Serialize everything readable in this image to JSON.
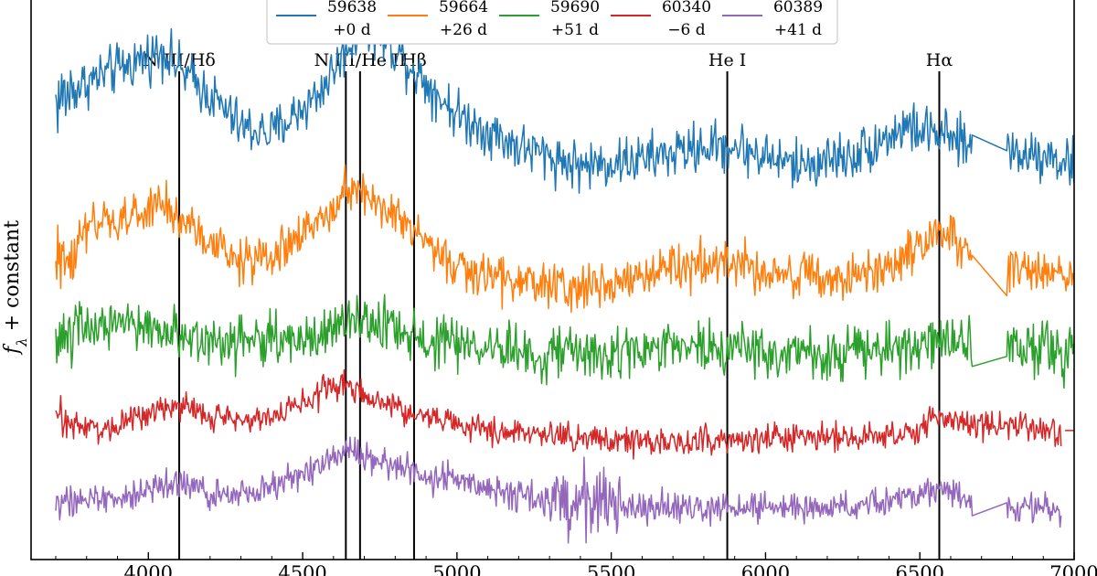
{
  "chart_data": {
    "type": "line",
    "ylabel": "f_λ + constant",
    "ylabel_parts": [
      "f",
      "λ",
      " + constant"
    ],
    "xlim": [
      3620,
      7000
    ],
    "ylim": [
      -0.3,
      8.4
    ],
    "xticks": [
      4000,
      4500,
      5000,
      5500,
      6000,
      6500,
      7000
    ],
    "x_tick_labels": [
      "4000",
      "4500",
      "5000",
      "5500",
      "6000",
      "6500",
      "7000"
    ],
    "legend": {
      "placement": "upper-center",
      "entries": [
        {
          "label_line1": "59638",
          "label_line2": "+0 d",
          "color": "#1f77b4"
        },
        {
          "label_line1": "59664",
          "label_line2": "+26 d",
          "color": "#ff7f0e"
        },
        {
          "label_line1": "59690",
          "label_line2": "+51 d",
          "color": "#2ca02c"
        },
        {
          "label_line1": "60340",
          "label_line2": "−6 d",
          "color": "#d62728"
        },
        {
          "label_line1": "60389",
          "label_line2": "+41 d",
          "color": "#9467bd"
        }
      ]
    },
    "line_markers": [
      {
        "label": "N III/Hδ",
        "wavelength": 4100
      },
      {
        "label": "",
        "wavelength": 4640
      },
      {
        "label": "N III/He II",
        "wavelength": 4686
      },
      {
        "label": "Hβ",
        "wavelength": 4861
      },
      {
        "label": "He I",
        "wavelength": 5876
      },
      {
        "label": "Hα",
        "wavelength": 6563
      }
    ],
    "series": [
      {
        "name": "59638 +0 d",
        "color": "#1f77b4",
        "offset": 5.5,
        "noise": 0.32,
        "x_start": 3700,
        "x": [
          3700,
          3800,
          3950,
          4050,
          4100,
          4200,
          4300,
          4400,
          4550,
          4640,
          4700,
          4800,
          4900,
          5000,
          5200,
          5400,
          5600,
          5800,
          5900,
          6100,
          6300,
          6450,
          6550,
          6660,
          6780,
          6800,
          6900,
          7000
        ],
        "y": [
          1.3,
          1.6,
          1.9,
          2.1,
          1.8,
          1.4,
          0.9,
          0.8,
          1.4,
          2.1,
          2.5,
          2.1,
          1.6,
          1.1,
          0.6,
          0.3,
          0.4,
          0.6,
          0.6,
          0.3,
          0.5,
          0.9,
          0.8,
          0.6,
          0.8,
          0.5,
          0.5,
          0.3
        ],
        "gaps": [
          [
            6670,
            6780
          ]
        ]
      },
      {
        "name": "59664 +26 d",
        "color": "#ff7f0e",
        "offset": 3.9,
        "noise": 0.3,
        "x_start": 3700,
        "x": [
          3700,
          3800,
          3950,
          4050,
          4100,
          4200,
          4300,
          4400,
          4550,
          4640,
          4700,
          4800,
          4900,
          5000,
          5200,
          5400,
          5600,
          5800,
          5900,
          6100,
          6300,
          6450,
          6550,
          6660,
          6780,
          6800,
          6900,
          7000
        ],
        "y": [
          0.3,
          0.9,
          1.1,
          1.3,
          1.1,
          0.7,
          0.4,
          0.5,
          1.0,
          1.6,
          1.5,
          1.1,
          0.7,
          0.3,
          0.1,
          0.0,
          0.2,
          0.4,
          0.4,
          0.2,
          0.1,
          0.5,
          0.9,
          0.6,
          0.2,
          0.3,
          0.3,
          0.2
        ],
        "gaps": [
          [
            6670,
            6780
          ]
        ]
      },
      {
        "name": "59690 +51 d",
        "color": "#2ca02c",
        "offset": 2.8,
        "noise": 0.34,
        "x_start": 3700,
        "x": [
          3700,
          3800,
          4000,
          4100,
          4200,
          4400,
          4600,
          4700,
          4800,
          4900,
          5000,
          5300,
          5600,
          5900,
          6200,
          6400,
          6550,
          6660,
          6780,
          6800,
          7000
        ],
        "y": [
          0.3,
          0.5,
          0.5,
          0.4,
          0.3,
          0.3,
          0.4,
          0.6,
          0.5,
          0.3,
          0.2,
          0.1,
          0.1,
          0.2,
          0.1,
          0.1,
          0.3,
          0.2,
          0.1,
          0.2,
          0.1
        ],
        "gaps": [
          [
            6670,
            6780
          ]
        ]
      },
      {
        "name": "60340 −6 d",
        "color": "#d62728",
        "offset": 1.6,
        "noise": 0.18,
        "x_start": 3700,
        "x": [
          3700,
          3850,
          4000,
          4100,
          4200,
          4400,
          4600,
          4640,
          4700,
          4900,
          5100,
          5400,
          5700,
          6000,
          6300,
          6500,
          6560,
          6700,
          6900,
          6960
        ],
        "y": [
          0.3,
          0.1,
          0.4,
          0.5,
          0.3,
          0.3,
          0.8,
          0.8,
          0.6,
          0.3,
          0.1,
          0.0,
          -0.1,
          0.0,
          0.0,
          0.1,
          0.3,
          0.2,
          0.1,
          0.1
        ],
        "gaps": [],
        "tail": [
          6970,
          7000
        ]
      },
      {
        "name": "60389 +41 d",
        "color": "#9467bd",
        "offset": 0.5,
        "noise": 0.2,
        "x_start": 3700,
        "x": [
          3700,
          3900,
          4000,
          4100,
          4200,
          4400,
          4600,
          4650,
          4700,
          4900,
          5100,
          5300,
          5400,
          5520,
          5550,
          5800,
          6000,
          6300,
          6500,
          6560,
          6660,
          6780,
          6900,
          6960
        ],
        "y": [
          0.2,
          0.1,
          0.3,
          0.4,
          0.2,
          0.3,
          0.8,
          1.0,
          0.8,
          0.5,
          0.3,
          0.1,
          0.0,
          0.1,
          0.0,
          0.0,
          0.0,
          0.0,
          0.2,
          0.3,
          0.1,
          0.0,
          0.0,
          -0.1
        ],
        "gaps": [
          [
            6670,
            6780
          ]
        ],
        "extra_noise_range": [
          5300,
          5530
        ]
      }
    ]
  }
}
